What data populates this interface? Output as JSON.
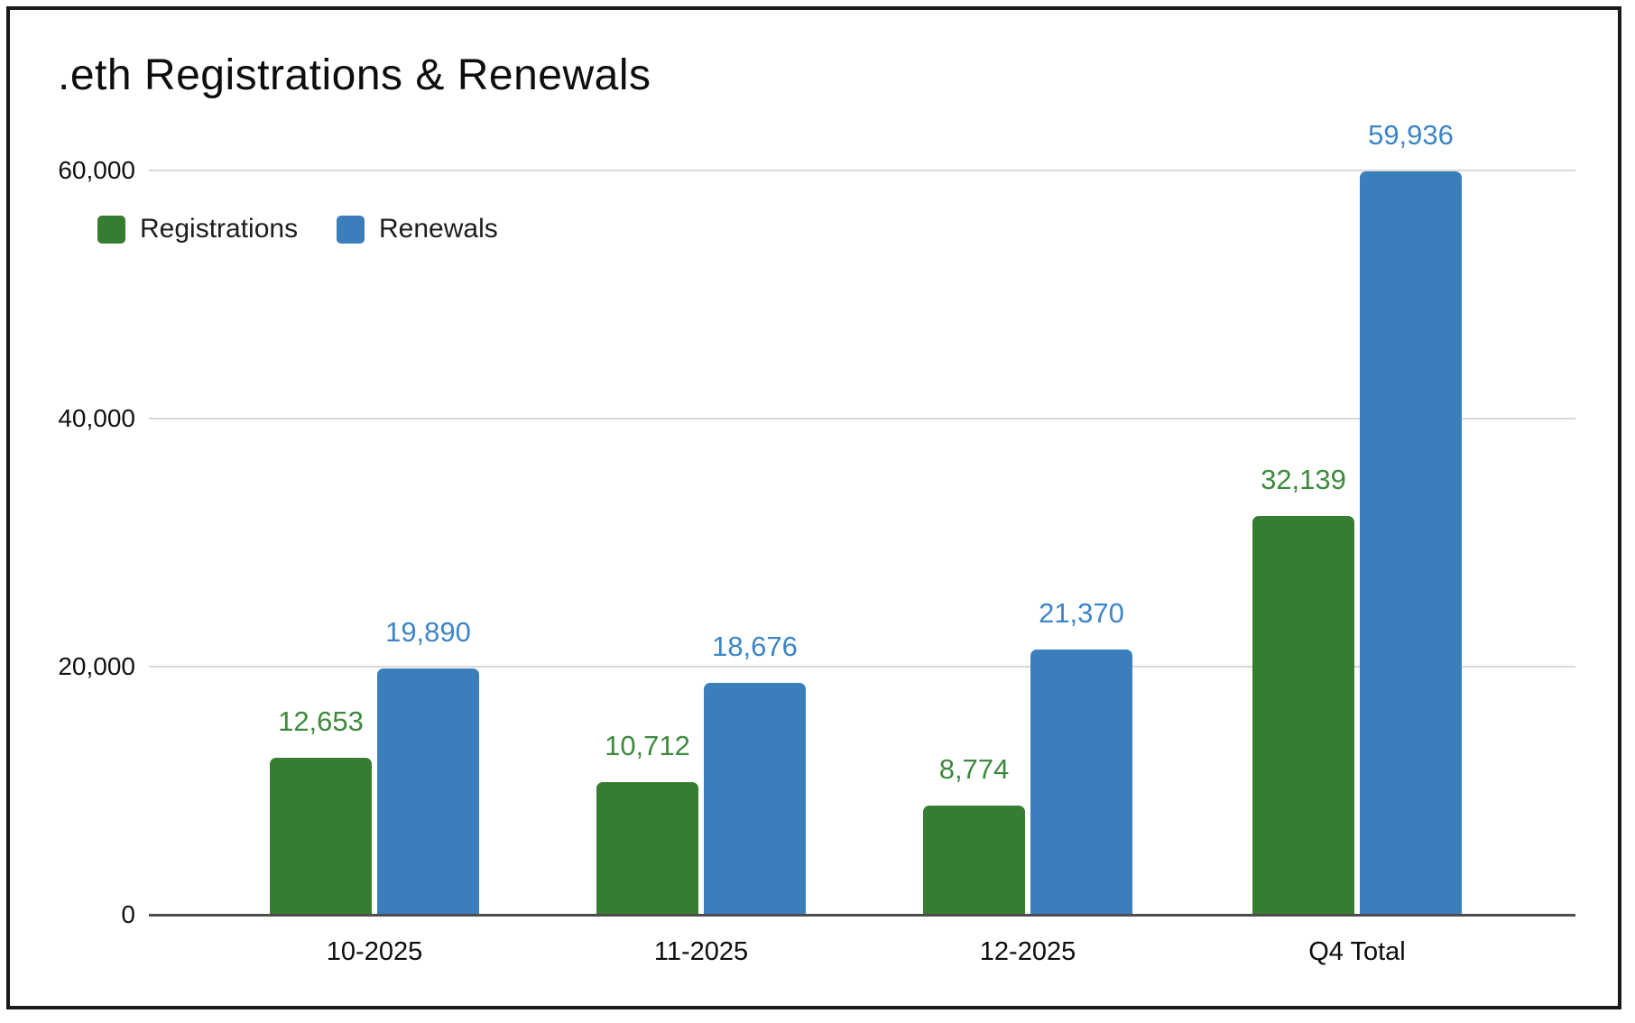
{
  "chart": {
    "colors": {
      "registrations_bar": "#377d31",
      "renewals_bar": "#3a7fbc",
      "registrations_label": "#3d8a3d",
      "renewals_label": "#3d85c6",
      "gridline": "#d9d9d9",
      "axis_line": "#4d4d4d",
      "title_text": "#0d0d0d"
    }
  },
  "chart_data": {
    "type": "bar",
    "title": ".eth Registrations & Renewals",
    "xlabel": "",
    "ylabel": "",
    "categories": [
      "10-2025",
      "11-2025",
      "12-2025",
      "Q4 Total"
    ],
    "series": [
      {
        "name": "Registrations",
        "color": "#377d31",
        "label_color": "#3d8a3d",
        "values": [
          12653,
          10712,
          8774,
          32139
        ],
        "labels": [
          "12,653",
          "10,712",
          "8,774",
          "32,139"
        ]
      },
      {
        "name": "Renewals",
        "color": "#3a7fbc",
        "label_color": "#3d85c6",
        "values": [
          19890,
          18676,
          21370,
          59936
        ],
        "labels": [
          "19,890",
          "18,676",
          "21,370",
          "59,936"
        ]
      }
    ],
    "ylim": [
      0,
      60000
    ],
    "yticks": [
      {
        "value": 0,
        "label": "0"
      },
      {
        "value": 20000,
        "label": "20,000"
      },
      {
        "value": 40000,
        "label": "40,000"
      },
      {
        "value": 60000,
        "label": "60,000"
      }
    ],
    "grid": true,
    "legend_position": "top-left"
  }
}
